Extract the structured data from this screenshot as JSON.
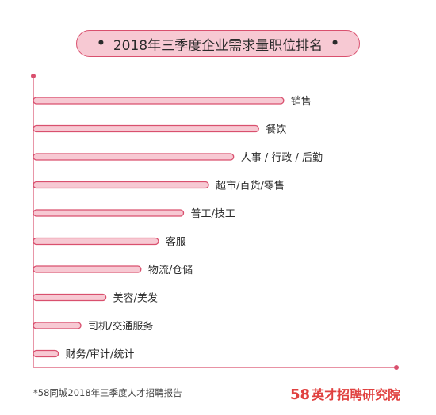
{
  "chart_data": {
    "type": "bar",
    "orientation": "horizontal",
    "title": "2018年三季度企业需求量职位排名",
    "categories": [
      "销售",
      "餐饮",
      "人事 / 行政 / 后勤",
      "超市/百货/零售",
      "普工/技工",
      "客服",
      "物流/仓储",
      "美容/美发",
      "司机/交通服务",
      "财务/审计/统计"
    ],
    "values": [
      100,
      90,
      80,
      70,
      60,
      50,
      43,
      29,
      19,
      10
    ],
    "xlim": [
      0,
      145
    ],
    "show_value_axis_labels": false,
    "colors": {
      "bar_fill": "#f7c9d3",
      "bar_stroke": "#d9506e",
      "axis": "#d9506e",
      "text": "#2b2b2b"
    }
  },
  "footer": {
    "source": "*58同城2018年三季度人才招聘报告",
    "brand_number": "58",
    "brand_name": "英才招聘研究院"
  }
}
